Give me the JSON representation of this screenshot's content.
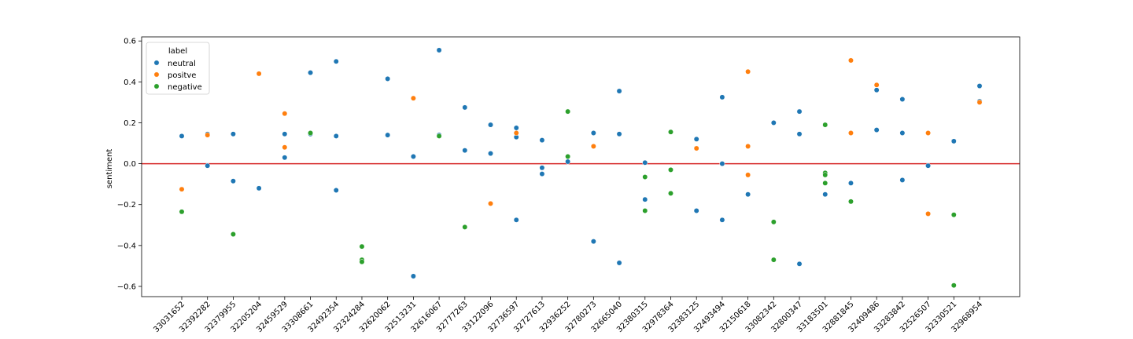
{
  "chart_data": {
    "type": "scatter",
    "title": "",
    "xlabel": "",
    "ylabel": "sentiment",
    "ylim": [
      -0.65,
      0.62
    ],
    "yticks": [
      -0.6,
      -0.4,
      -0.2,
      0.0,
      0.2,
      0.4,
      0.6
    ],
    "ytick_labels": [
      "−0.6",
      "−0.4",
      "−0.2",
      "0.0",
      "0.2",
      "0.4",
      "0.6"
    ],
    "categories": [
      "33031652",
      "32392282",
      "32379955",
      "32205204",
      "32459529",
      "33308661",
      "32492354",
      "32324284",
      "32620062",
      "32513231",
      "32616067",
      "32777263",
      "33122096",
      "32736597",
      "32727613",
      "32936252",
      "32780273",
      "32665040",
      "32380315",
      "32978364",
      "32383125",
      "32493494",
      "32150618",
      "33082342",
      "32800347",
      "33183501",
      "32881845",
      "32409486",
      "33283842",
      "32526507",
      "32330521",
      "32968954"
    ],
    "reference_line": {
      "y": 0.0,
      "color": "#d62728"
    },
    "legend": {
      "title": "label",
      "position": "top-left"
    },
    "series": [
      {
        "name": "neutral",
        "color": "#1f77b4",
        "points": [
          [
            "33031652",
            0.135
          ],
          [
            "32392282",
            0.145
          ],
          [
            "32392282",
            -0.01
          ],
          [
            "32379955",
            0.145
          ],
          [
            "32379955",
            -0.085
          ],
          [
            "32205204",
            -0.12
          ],
          [
            "32459529",
            0.145
          ],
          [
            "32459529",
            0.03
          ],
          [
            "33308661",
            0.445
          ],
          [
            "33308661",
            0.145
          ],
          [
            "32492354",
            0.5
          ],
          [
            "32492354",
            0.135
          ],
          [
            "32492354",
            -0.13
          ],
          [
            "32620062",
            0.415
          ],
          [
            "32620062",
            0.14
          ],
          [
            "32513231",
            0.035
          ],
          [
            "32513231",
            -0.55
          ],
          [
            "32616067",
            0.555
          ],
          [
            "32616067",
            0.14
          ],
          [
            "32777263",
            0.275
          ],
          [
            "32777263",
            0.065
          ],
          [
            "33122096",
            0.19
          ],
          [
            "33122096",
            0.05
          ],
          [
            "32736597",
            0.175
          ],
          [
            "32736597",
            0.13
          ],
          [
            "32736597",
            -0.275
          ],
          [
            "32727613",
            0.115
          ],
          [
            "32727613",
            -0.02
          ],
          [
            "32727613",
            -0.05
          ],
          [
            "32936252",
            0.01
          ],
          [
            "32780273",
            0.15
          ],
          [
            "32780273",
            -0.38
          ],
          [
            "32665040",
            0.355
          ],
          [
            "32665040",
            0.145
          ],
          [
            "32665040",
            -0.485
          ],
          [
            "32380315",
            0.005
          ],
          [
            "32380315",
            -0.175
          ],
          [
            "32383125",
            0.12
          ],
          [
            "32383125",
            -0.23
          ],
          [
            "32493494",
            0.325
          ],
          [
            "32493494",
            0.0
          ],
          [
            "32493494",
            -0.275
          ],
          [
            "32150618",
            -0.15
          ],
          [
            "33082342",
            0.2
          ],
          [
            "32800347",
            0.255
          ],
          [
            "32800347",
            0.145
          ],
          [
            "32800347",
            -0.49
          ],
          [
            "33183501",
            -0.15
          ],
          [
            "32881845",
            -0.095
          ],
          [
            "32409486",
            0.36
          ],
          [
            "32409486",
            0.165
          ],
          [
            "33283842",
            0.315
          ],
          [
            "33283842",
            0.15
          ],
          [
            "33283842",
            -0.08
          ],
          [
            "32526507",
            -0.01
          ],
          [
            "32330521",
            0.11
          ],
          [
            "32968954",
            0.38
          ],
          [
            "32968954",
            0.305
          ]
        ]
      },
      {
        "name": "positve",
        "color": "#ff7f0e",
        "points": [
          [
            "33031652",
            -0.125
          ],
          [
            "32392282",
            0.14
          ],
          [
            "32205204",
            0.44
          ],
          [
            "32459529",
            0.245
          ],
          [
            "32459529",
            0.08
          ],
          [
            "32513231",
            0.32
          ],
          [
            "33122096",
            -0.195
          ],
          [
            "32736597",
            0.15
          ],
          [
            "32780273",
            0.085
          ],
          [
            "32383125",
            0.075
          ],
          [
            "32150618",
            0.45
          ],
          [
            "32150618",
            0.085
          ],
          [
            "32150618",
            -0.055
          ],
          [
            "32881845",
            0.505
          ],
          [
            "32881845",
            0.15
          ],
          [
            "32409486",
            0.385
          ],
          [
            "32526507",
            0.15
          ],
          [
            "32526507",
            -0.245
          ],
          [
            "32968954",
            0.3
          ]
        ]
      },
      {
        "name": "negative",
        "color": "#2ca02c",
        "points": [
          [
            "33031652",
            -0.235
          ],
          [
            "32379955",
            -0.345
          ],
          [
            "33308661",
            0.15
          ],
          [
            "32324284",
            -0.405
          ],
          [
            "32324284",
            -0.47
          ],
          [
            "32324284",
            -0.48
          ],
          [
            "32616067",
            0.135
          ],
          [
            "32777263",
            -0.31
          ],
          [
            "32936252",
            0.255
          ],
          [
            "32936252",
            0.035
          ],
          [
            "32380315",
            -0.065
          ],
          [
            "32380315",
            -0.23
          ],
          [
            "32978364",
            0.155
          ],
          [
            "32978364",
            -0.03
          ],
          [
            "32978364",
            -0.145
          ],
          [
            "33082342",
            -0.285
          ],
          [
            "33082342",
            -0.47
          ],
          [
            "33183501",
            0.19
          ],
          [
            "33183501",
            -0.045
          ],
          [
            "33183501",
            -0.055
          ],
          [
            "33183501",
            -0.095
          ],
          [
            "32881845",
            -0.185
          ],
          [
            "32330521",
            -0.25
          ],
          [
            "32330521",
            -0.595
          ]
        ]
      }
    ]
  }
}
